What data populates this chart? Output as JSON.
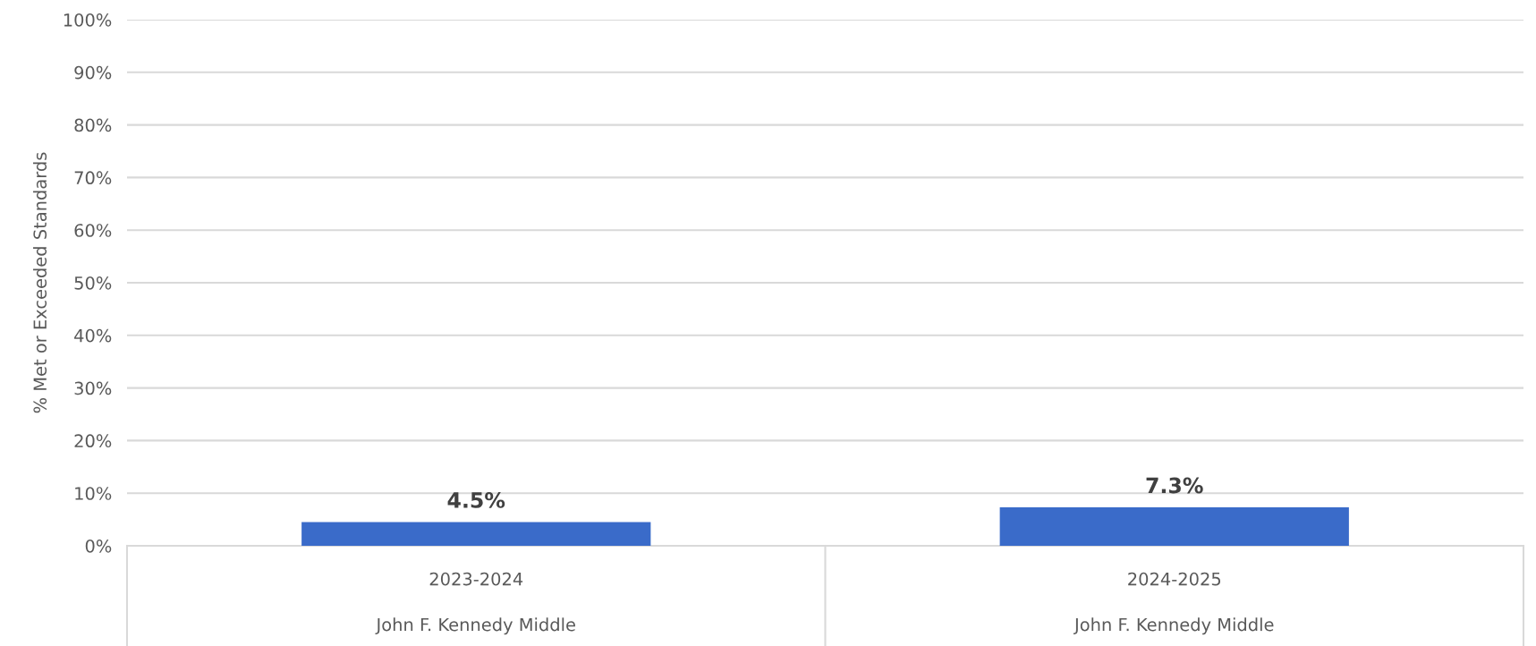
{
  "chart_data": {
    "type": "bar",
    "ylabel": "% Met or Exceeded Standards",
    "categories": [
      "2023-2024\n\nJohn F. Kennedy Middle",
      "2024-2025\n\nJohn F. Kennedy Middle"
    ],
    "values": [
      4.5,
      7.3
    ],
    "value_labels": [
      "4.5%",
      "7.3%"
    ],
    "color": "#3a6bc9",
    "ylim": [
      0,
      100
    ],
    "yticks": [
      {
        "value": 0,
        "label": "0%"
      },
      {
        "value": 10,
        "label": "10%"
      },
      {
        "value": 20,
        "label": "20%"
      },
      {
        "value": 30,
        "label": "30%"
      },
      {
        "value": 40,
        "label": "40%"
      },
      {
        "value": 50,
        "label": "50%"
      },
      {
        "value": 60,
        "label": "60%"
      },
      {
        "value": 70,
        "label": "70%"
      },
      {
        "value": 80,
        "label": "80%"
      },
      {
        "value": 90,
        "label": "90%"
      },
      {
        "value": 100,
        "label": "100%"
      }
    ],
    "grid": "y"
  }
}
